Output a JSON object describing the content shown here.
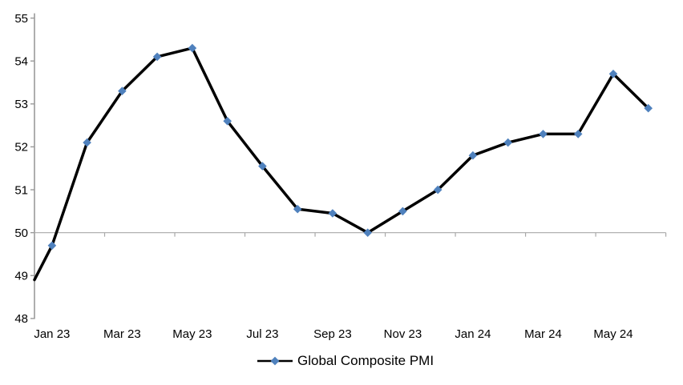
{
  "chart_data": {
    "type": "line",
    "title": "",
    "series": [
      {
        "name": "Global Composite PMI",
        "categories": [
          "Jan 23",
          "Feb 23",
          "Mar 23",
          "Apr 23",
          "May 23",
          "Jun 23",
          "Jul 23",
          "Aug 23",
          "Sep 23",
          "Oct 23",
          "Nov 23",
          "Dec 23",
          "Jan 24",
          "Feb 24",
          "Mar 24",
          "Apr 24",
          "May 24",
          "Jun 24"
        ],
        "values": [
          49.7,
          52.1,
          53.3,
          54.1,
          54.3,
          52.6,
          51.55,
          50.55,
          50.45,
          50.0,
          50.5,
          51.0,
          51.8,
          52.1,
          52.3,
          52.3,
          53.7,
          52.9
        ]
      }
    ],
    "line_start_at_left_axis_value": 48.9,
    "x_axis_tick_labels": [
      "Jan 23",
      "Mar 23",
      "May 23",
      "Jul 23",
      "Sep 23",
      "Nov 23",
      "Jan 24",
      "Mar 24",
      "May 24"
    ],
    "y_axis_ticks": [
      48,
      49,
      50,
      51,
      52,
      53,
      54,
      55
    ],
    "ylim": [
      48,
      55
    ],
    "category_axis_crosses_at": 50,
    "grid": false,
    "legend": {
      "position": "bottom",
      "label": "Global Composite PMI"
    },
    "colors": {
      "line": "#000000",
      "marker": "#4F81BD",
      "axis": "#9a9a9a",
      "x_axis_line": "#a8a8a8",
      "text": "#000000"
    }
  }
}
